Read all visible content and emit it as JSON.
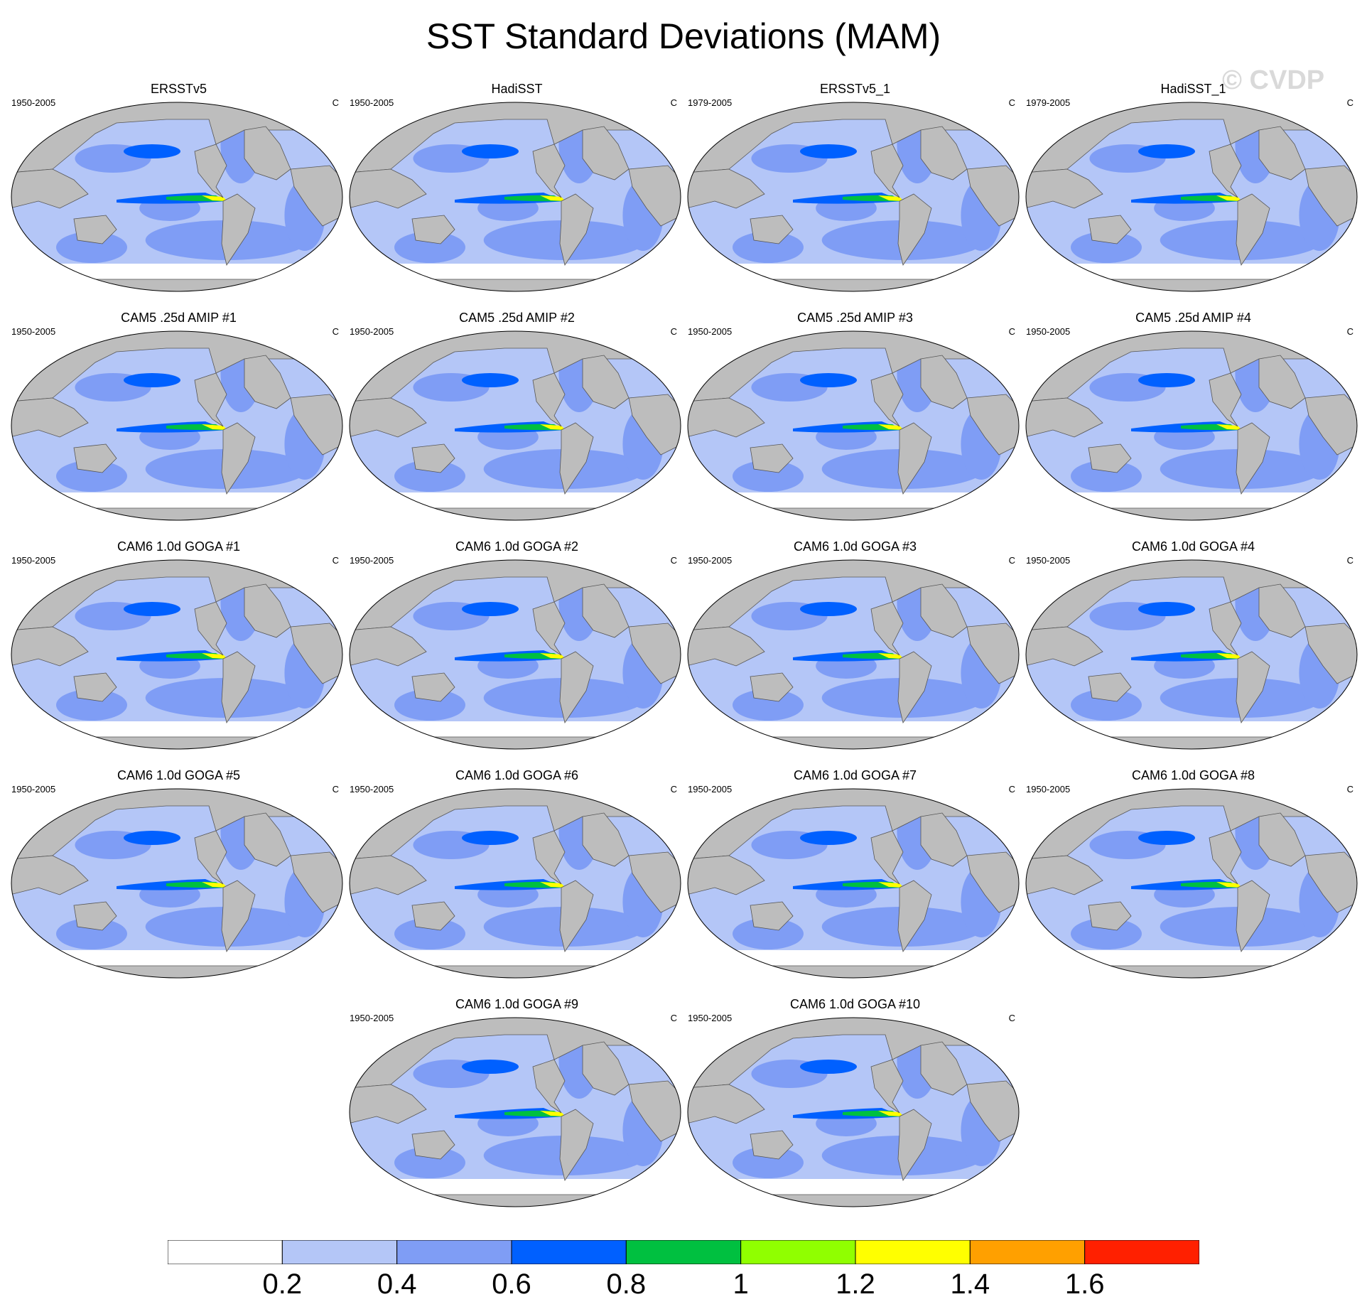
{
  "title": "SST Standard Deviations (MAM)",
  "watermark": "© CVDP",
  "units": "C",
  "panels": [
    {
      "name": "ERSSTv5",
      "years": "1950-2005"
    },
    {
      "name": "HadiSST",
      "years": "1950-2005"
    },
    {
      "name": "ERSSTv5_1",
      "years": "1979-2005"
    },
    {
      "name": "HadiSST_1",
      "years": "1979-2005"
    },
    {
      "name": "CAM5 .25d AMIP #1",
      "years": "1950-2005"
    },
    {
      "name": "CAM5 .25d AMIP #2",
      "years": "1950-2005"
    },
    {
      "name": "CAM5 .25d AMIP #3",
      "years": "1950-2005"
    },
    {
      "name": "CAM5 .25d AMIP #4",
      "years": "1950-2005"
    },
    {
      "name": "CAM6 1.0d GOGA #1",
      "years": "1950-2005"
    },
    {
      "name": "CAM6 1.0d GOGA #2",
      "years": "1950-2005"
    },
    {
      "name": "CAM6 1.0d GOGA #3",
      "years": "1950-2005"
    },
    {
      "name": "CAM6 1.0d GOGA #4",
      "years": "1950-2005"
    },
    {
      "name": "CAM6 1.0d GOGA #5",
      "years": "1950-2005"
    },
    {
      "name": "CAM6 1.0d GOGA #6",
      "years": "1950-2005"
    },
    {
      "name": "CAM6 1.0d GOGA #7",
      "years": "1950-2005"
    },
    {
      "name": "CAM6 1.0d GOGA #8",
      "years": "1950-2005"
    },
    {
      "name": "CAM6 1.0d GOGA #9",
      "years": "1950-2005"
    },
    {
      "name": "CAM6 1.0d GOGA #10",
      "years": "1950-2005"
    }
  ],
  "chart_data": {
    "type": "heatmap",
    "title": "SST Standard Deviations (MAM)",
    "units": "C",
    "projection": "Robinson, Pacific-centered global maps",
    "colorbar": {
      "levels": [
        0.2,
        0.4,
        0.6,
        0.8,
        1,
        1.2,
        1.4,
        1.6
      ],
      "tick_labels": [
        "0.2",
        "0.4",
        "0.6",
        "0.8",
        "1",
        "1.2",
        "1.4",
        "1.6"
      ],
      "colors": [
        "#ffffff",
        "#b4c6f7",
        "#7f9df5",
        "#0060ff",
        "#00c040",
        "#90ff00",
        "#ffff00",
        "#ffa000",
        "#ff2000"
      ]
    }
  }
}
